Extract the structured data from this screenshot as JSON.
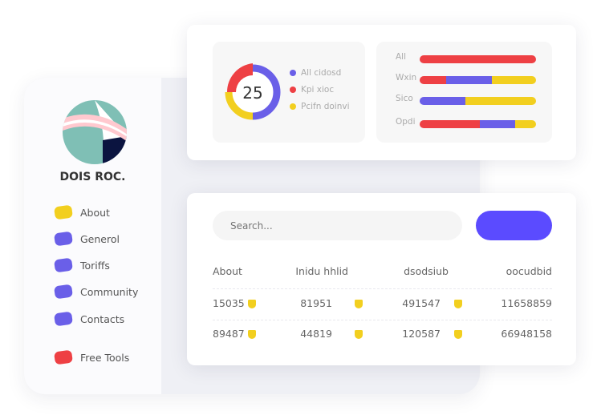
{
  "sidebar": {
    "brand": "DOIS ROC.",
    "items": [
      {
        "label": "About",
        "color": "#f2cf1f"
      },
      {
        "label": "Generol",
        "color": "#6a5fe8"
      },
      {
        "label": "Toriffs",
        "color": "#6a5fe8"
      },
      {
        "label": "Community",
        "color": "#6a5fe8"
      },
      {
        "label": "Contacts",
        "color": "#6a5fe8"
      },
      {
        "label": "Free Tools",
        "color": "#ee4044"
      }
    ]
  },
  "donut": {
    "value": "25",
    "legend": [
      {
        "label": "All cidosd",
        "color": "#6a5fe8"
      },
      {
        "label": "Kpi xioc",
        "color": "#ee4044"
      },
      {
        "label": "Pcifn doinvi",
        "color": "#f2cf1f"
      }
    ],
    "segments": [
      {
        "color": "#6a5fe8",
        "percent": 50
      },
      {
        "color": "#f2cf1f",
        "percent": 25
      },
      {
        "color": "#ee4044",
        "percent": 25
      }
    ]
  },
  "bars": [
    {
      "label": "All",
      "segments": [
        {
          "color": "#ee4044",
          "percent": 100
        }
      ]
    },
    {
      "label": "Wxin",
      "segments": [
        {
          "color": "#ee4044",
          "percent": 23
        },
        {
          "color": "#6a5fe8",
          "percent": 39
        },
        {
          "color": "#f2cf1f",
          "percent": 38
        }
      ]
    },
    {
      "label": "Sico",
      "segments": [
        {
          "color": "#6a5fe8",
          "percent": 39
        },
        {
          "color": "#f2cf1f",
          "percent": 61
        }
      ]
    },
    {
      "label": "Opdi",
      "segments": [
        {
          "color": "#ee4044",
          "percent": 52
        },
        {
          "color": "#6a5fe8",
          "percent": 30
        },
        {
          "color": "#f2cf1f",
          "percent": 18
        }
      ]
    }
  ],
  "search": {
    "placeholder": "Search..."
  },
  "table": {
    "headers": [
      "About",
      "Inidu hhlid",
      "dsodsiub",
      "oocudbid"
    ],
    "rows": [
      [
        "15035",
        "81951",
        "491547",
        "11658859"
      ],
      [
        "89487",
        "44819",
        "120587",
        "66948158"
      ]
    ]
  }
}
